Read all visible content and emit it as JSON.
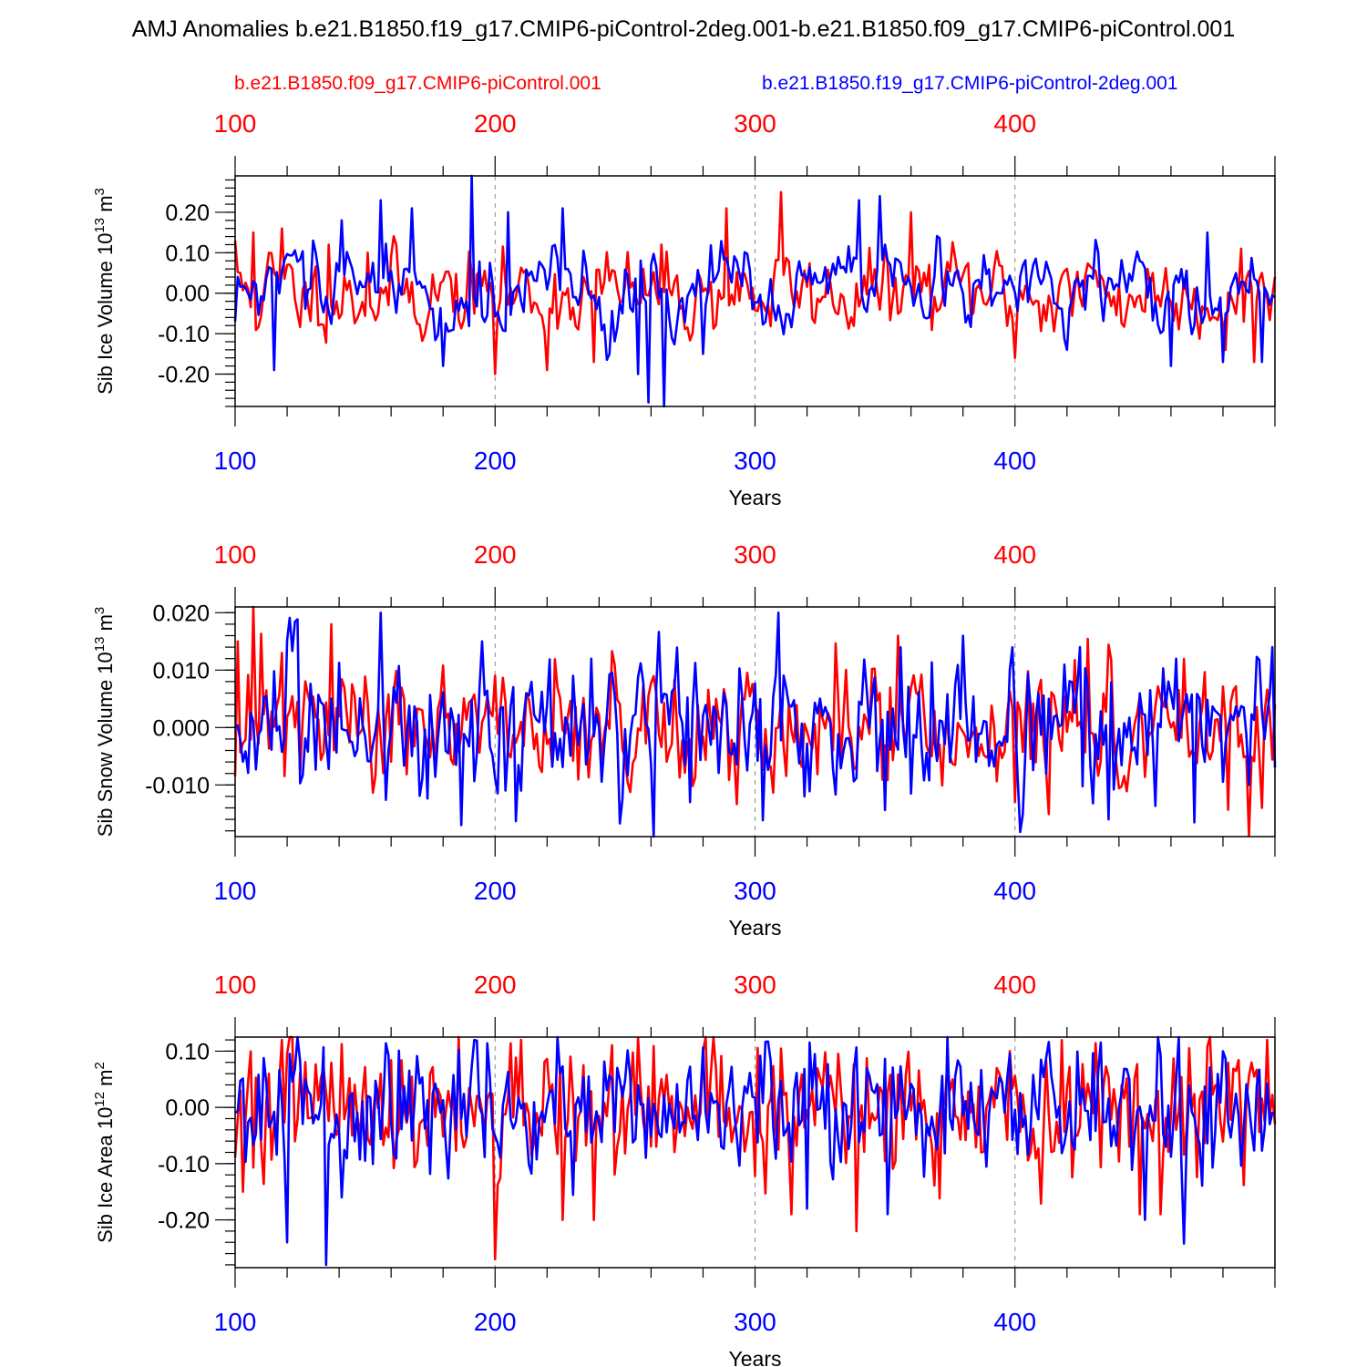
{
  "title": "AMJ Anomalies b.e21.B1850.f19_g17.CMIP6-piControl-2deg.001-b.e21.B1850.f09_g17.CMIP6-piControl.001",
  "legend": {
    "red_label": "b.e21.B1850.f09_g17.CMIP6-piControl.001",
    "blue_label": "b.e21.B1850.f19_g17.CMIP6-piControl-2deg.001"
  },
  "colors": {
    "red": "#ff0000",
    "blue": "#0000ff",
    "axis": "#000000",
    "grid": "#888888"
  },
  "chart_data": [
    {
      "type": "line",
      "id": "ice-volume",
      "ylabel": "Sib Ice Volume 10",
      "ylabel_exp": "13",
      "ylabel_unit": " m",
      "ylabel_unit_exp": "3",
      "xlabel": "Years",
      "xlim": [
        100,
        500
      ],
      "ylim": [
        -0.28,
        0.29
      ],
      "yticks": [
        -0.2,
        -0.1,
        0.0,
        0.1,
        0.2
      ],
      "ytick_labels": [
        "-0.20",
        "-0.10",
        "0.00",
        "0.10",
        "0.20"
      ],
      "xticks": [
        100,
        200,
        300,
        400
      ],
      "xtick_labels": [
        "100",
        "200",
        "300",
        "400"
      ],
      "series": [
        {
          "name": "b.e21.B1850.f09_g17.CMIP6-piControl.001",
          "color": "red",
          "x_start": 100,
          "n": 401,
          "amp": 0.055,
          "ar": 0.55,
          "seed": 11,
          "anchors": [
            [
              100,
              0.13
            ],
            [
              107,
              0.15
            ],
            [
              113,
              0.1
            ],
            [
              118,
              0.16
            ],
            [
              136,
              0.12
            ],
            [
              151,
              0.1
            ],
            [
              200,
              -0.2
            ],
            [
              220,
              -0.19
            ],
            [
              238,
              -0.17
            ],
            [
              264,
              0.12
            ],
            [
              289,
              0.21
            ],
            [
              310,
              0.25
            ],
            [
              360,
              0.2
            ],
            [
              400,
              -0.16
            ],
            [
              487,
              0.11
            ],
            [
              492,
              -0.17
            ],
            [
              500,
              0.04
            ]
          ]
        },
        {
          "name": "b.e21.B1850.f19_g17.CMIP6-piControl-2deg.001",
          "color": "blue",
          "x_start": 100,
          "n": 401,
          "amp": 0.06,
          "ar": 0.7,
          "seed": 29,
          "anchors": [
            [
              100,
              -0.07
            ],
            [
              115,
              -0.19
            ],
            [
              130,
              0.13
            ],
            [
              141,
              0.18
            ],
            [
              156,
              0.23
            ],
            [
              168,
              0.21
            ],
            [
              180,
              -0.18
            ],
            [
              191,
              0.29
            ],
            [
              205,
              0.2
            ],
            [
              226,
              0.21
            ],
            [
              249,
              -0.05
            ],
            [
              255,
              -0.2
            ],
            [
              259,
              -0.27
            ],
            [
              265,
              -0.28
            ],
            [
              280,
              -0.15
            ],
            [
              340,
              0.23
            ],
            [
              348,
              0.24
            ],
            [
              420,
              -0.14
            ],
            [
              460,
              -0.18
            ],
            [
              474,
              0.15
            ],
            [
              480,
              -0.17
            ],
            [
              495,
              -0.17
            ],
            [
              500,
              -0.01
            ]
          ]
        }
      ]
    },
    {
      "type": "line",
      "id": "snow-volume",
      "ylabel": "Sib Snow Volume 10",
      "ylabel_exp": "13",
      "ylabel_unit": " m",
      "ylabel_unit_exp": "3",
      "xlabel": "Years",
      "xlim": [
        100,
        500
      ],
      "ylim": [
        -0.019,
        0.021
      ],
      "yticks": [
        -0.01,
        0.0,
        0.01,
        0.02
      ],
      "ytick_labels": [
        "-0.010",
        "0.000",
        "0.010",
        "0.020"
      ],
      "xticks": [
        100,
        200,
        300,
        400
      ],
      "xtick_labels": [
        "100",
        "200",
        "300",
        "400"
      ],
      "series": [
        {
          "name": "b.e21.B1850.f09_g17.CMIP6-piControl.001",
          "color": "red",
          "x_start": 100,
          "n": 401,
          "amp": 0.0055,
          "ar": 0.25,
          "seed": 47,
          "anchors": [
            [
              101,
              0.015
            ],
            [
              107,
              0.021
            ],
            [
              118,
              0.013
            ],
            [
              137,
              0.018
            ],
            [
              400,
              -0.013
            ],
            [
              495,
              -0.014
            ],
            [
              500,
              0.004
            ]
          ]
        },
        {
          "name": "b.e21.B1850.f19_g17.CMIP6-piControl-2deg.001",
          "color": "blue",
          "x_start": 100,
          "n": 401,
          "amp": 0.0065,
          "ar": 0.2,
          "seed": 83,
          "anchors": [
            [
              100,
              0.0
            ],
            [
              156,
              0.02
            ],
            [
              187,
              -0.017
            ],
            [
              195,
              0.015
            ],
            [
              261,
              -0.019
            ],
            [
              275,
              -0.013
            ],
            [
              309,
              0.02
            ],
            [
              380,
              0.016
            ],
            [
              425,
              0.014
            ],
            [
              436,
              -0.016
            ],
            [
              490,
              -0.01
            ],
            [
              500,
              -0.007
            ]
          ]
        }
      ]
    },
    {
      "type": "line",
      "id": "ice-area",
      "ylabel": "Sib Ice Area 10",
      "ylabel_exp": "12",
      "ylabel_unit": " m",
      "ylabel_unit_exp": "2",
      "xlabel": "Years",
      "xlim": [
        100,
        500
      ],
      "ylim": [
        -0.285,
        0.125
      ],
      "yticks": [
        -0.2,
        -0.1,
        0.0,
        0.1
      ],
      "ytick_labels": [
        "-0.20",
        "-0.10",
        "0.00",
        "0.10"
      ],
      "xticks": [
        100,
        200,
        300,
        400
      ],
      "xtick_labels": [
        "100",
        "200",
        "300",
        "400"
      ],
      "series": [
        {
          "name": "b.e21.B1850.f09_g17.CMIP6-piControl.001",
          "color": "red",
          "x_start": 100,
          "n": 401,
          "amp": 0.06,
          "ar": 0.1,
          "seed": 101,
          "anchors": [
            [
              103,
              -0.15
            ],
            [
              118,
              0.12
            ],
            [
              200,
              -0.27
            ],
            [
              210,
              0.12
            ],
            [
              226,
              -0.2
            ],
            [
              238,
              -0.2
            ],
            [
              314,
              -0.19
            ],
            [
              339,
              -0.22
            ],
            [
              448,
              -0.19
            ],
            [
              456,
              -0.19
            ],
            [
              497,
              0.12
            ],
            [
              500,
              -0.03
            ]
          ]
        },
        {
          "name": "b.e21.B1850.f19_g17.CMIP6-piControl-2deg.001",
          "color": "blue",
          "x_start": 100,
          "n": 401,
          "amp": 0.06,
          "ar": 0.1,
          "seed": 137,
          "anchors": [
            [
              100,
              -0.01
            ],
            [
              120,
              -0.24
            ],
            [
              135,
              -0.28
            ],
            [
              141,
              -0.16
            ],
            [
              320,
              -0.18
            ],
            [
              450,
              -0.2
            ],
            [
              500,
              -0.01
            ]
          ]
        }
      ]
    }
  ]
}
